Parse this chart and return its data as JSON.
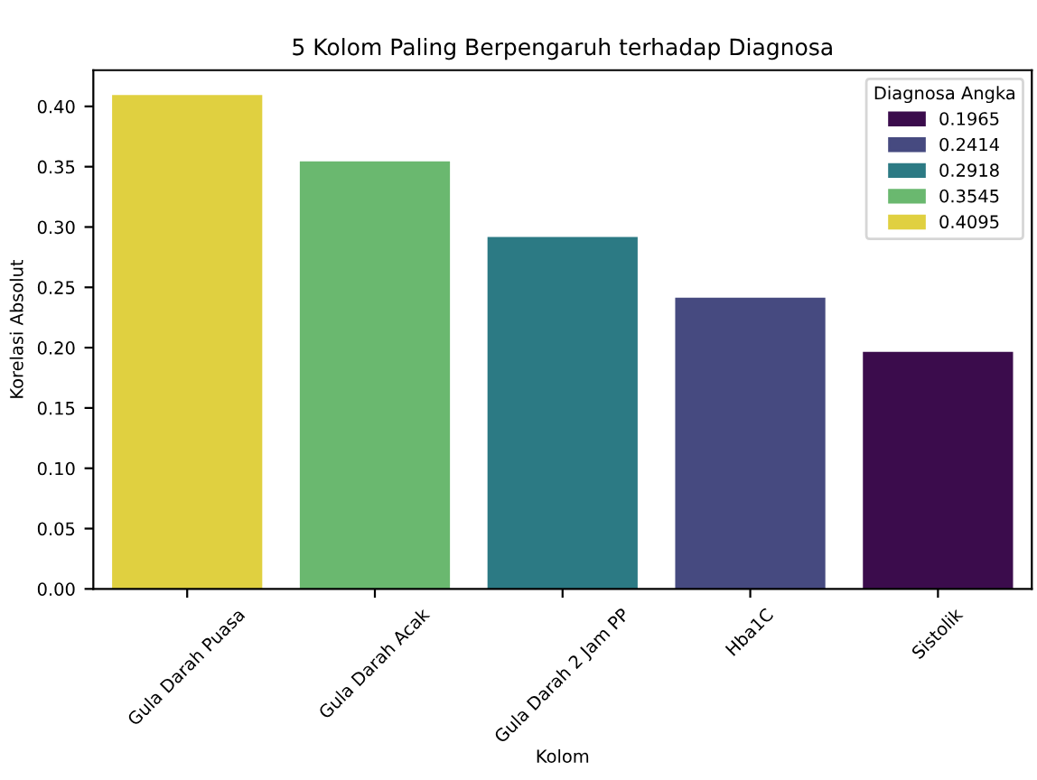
{
  "chart_data": {
    "type": "bar",
    "title": "5 Kolom Paling Berpengaruh terhadap Diagnosa",
    "xlabel": "Kolom",
    "ylabel": "Korelasi Absolut",
    "legend_title": "Diagnosa Angka",
    "categories": [
      "Gula Darah Puasa",
      "Gula Darah Acak",
      "Gula Darah 2 Jam PP",
      "Hba1C",
      "Sistolik"
    ],
    "series": [
      {
        "name": "0.1965",
        "color": "#3b0c4c",
        "values": [
          null,
          null,
          null,
          null,
          0.1965
        ]
      },
      {
        "name": "0.2414",
        "color": "#464a80",
        "values": [
          null,
          null,
          null,
          0.2414,
          null
        ]
      },
      {
        "name": "0.2918",
        "color": "#2c7a84",
        "values": [
          null,
          null,
          0.2918,
          null,
          null
        ]
      },
      {
        "name": "0.3545",
        "color": "#6ab86f",
        "values": [
          null,
          0.3545,
          null,
          null,
          null
        ]
      },
      {
        "name": "0.4095",
        "color": "#e0d040",
        "values": [
          0.4095,
          null,
          null,
          null,
          null
        ]
      }
    ],
    "ylim": [
      0,
      0.43
    ],
    "yticks": [
      {
        "value": 0,
        "label": "0.00"
      },
      {
        "value": 0.05,
        "label": "0.05"
      },
      {
        "value": 0.1,
        "label": "0.10"
      },
      {
        "value": 0.15,
        "label": "0.15"
      },
      {
        "value": 0.2,
        "label": "0.20"
      },
      {
        "value": 0.25,
        "label": "0.25"
      },
      {
        "value": 0.3,
        "label": "0.30"
      },
      {
        "value": 0.35,
        "label": "0.35"
      },
      {
        "value": 0.4,
        "label": "0.40"
      }
    ],
    "grid": false,
    "legend": "top right"
  }
}
